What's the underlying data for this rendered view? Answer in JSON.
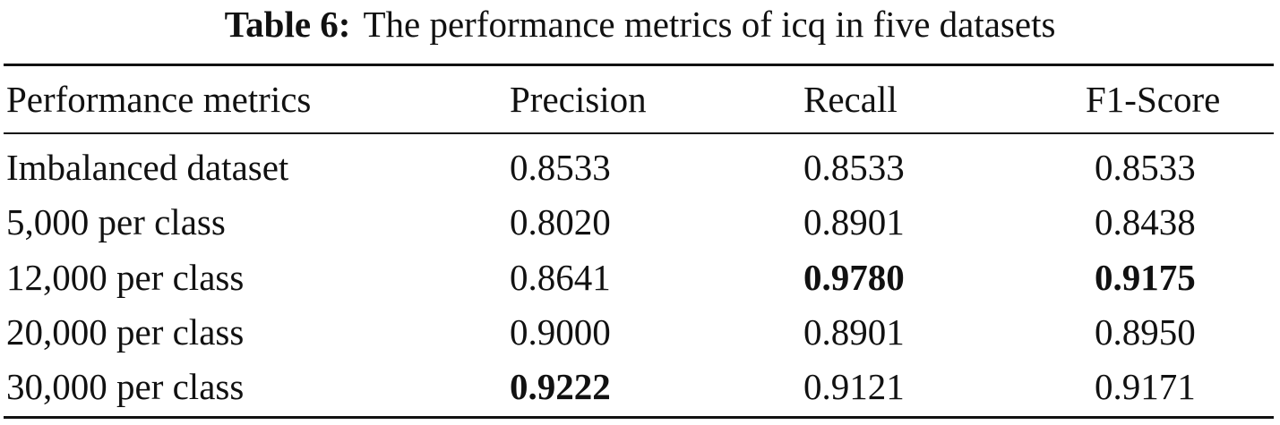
{
  "caption": {
    "label": "Table 6:",
    "text": "The performance metrics of icq in five datasets"
  },
  "table": {
    "headers": [
      "Performance metrics",
      "Precision",
      "Recall",
      "F1-Score"
    ],
    "rows": [
      {
        "label": "Imbalanced dataset",
        "precision": "0.8533",
        "recall": "0.8533",
        "f1": "0.8533"
      },
      {
        "label": "5,000 per class",
        "precision": "0.8020",
        "recall": "0.8901",
        "f1": "0.8438"
      },
      {
        "label": "12,000 per class",
        "precision": "0.8641",
        "recall": "0.9780",
        "f1": "0.9175"
      },
      {
        "label": "20,000 per class",
        "precision": "0.9000",
        "recall": "0.8901",
        "f1": "0.8950"
      },
      {
        "label": "30,000 per class",
        "precision": "0.9222",
        "recall": "0.9121",
        "f1": "0.9171"
      }
    ],
    "bold_cells": [
      "rows.2.recall",
      "rows.2.f1",
      "rows.4.precision"
    ]
  }
}
